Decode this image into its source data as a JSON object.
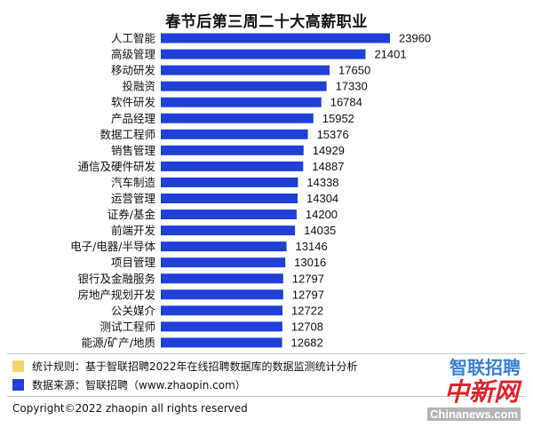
{
  "colors": {
    "bar": "#1f3fd9",
    "note_rule_swatch": "#f2d36b",
    "note_source_swatch": "#1f3fd9",
    "logo_blue": "#3a7fd6",
    "logo_red": "#d8262c"
  },
  "chart_data": {
    "type": "bar",
    "orientation": "horizontal",
    "title": "春节后第三周二十大高薪职业",
    "categories": [
      "人工智能",
      "高级管理",
      "移动研发",
      "投融资",
      "软件研发",
      "产品经理",
      "数据工程师",
      "销售管理",
      "通信及硬件研发",
      "汽车制造",
      "运营管理",
      "证券/基金",
      "前端开发",
      "电子/电器/半导体",
      "项目管理",
      "银行及金融服务",
      "房地产规划开发",
      "公关媒介",
      "测试工程师",
      "能源/矿产/地质"
    ],
    "values": [
      23960,
      21401,
      17650,
      17330,
      16784,
      15952,
      15376,
      14929,
      14887,
      14338,
      14304,
      14200,
      14035,
      13146,
      13016,
      12797,
      12797,
      12722,
      12708,
      12682
    ],
    "xlim": [
      0,
      23960
    ],
    "grid": false,
    "data_labels": true
  },
  "notes": {
    "rule": "统计规则：基于智联招聘2022年在线招聘数据库的数据监测统计分析",
    "source": "数据来源：智联招聘（www.zhaopin.com）"
  },
  "footer": {
    "copyright": "Copyright©2022 zhaopin all rights reserved"
  },
  "logos": {
    "zhaopin": "智联招聘",
    "chinanews_cn": "中新网",
    "chinanews_en": "Chinanews.com"
  }
}
